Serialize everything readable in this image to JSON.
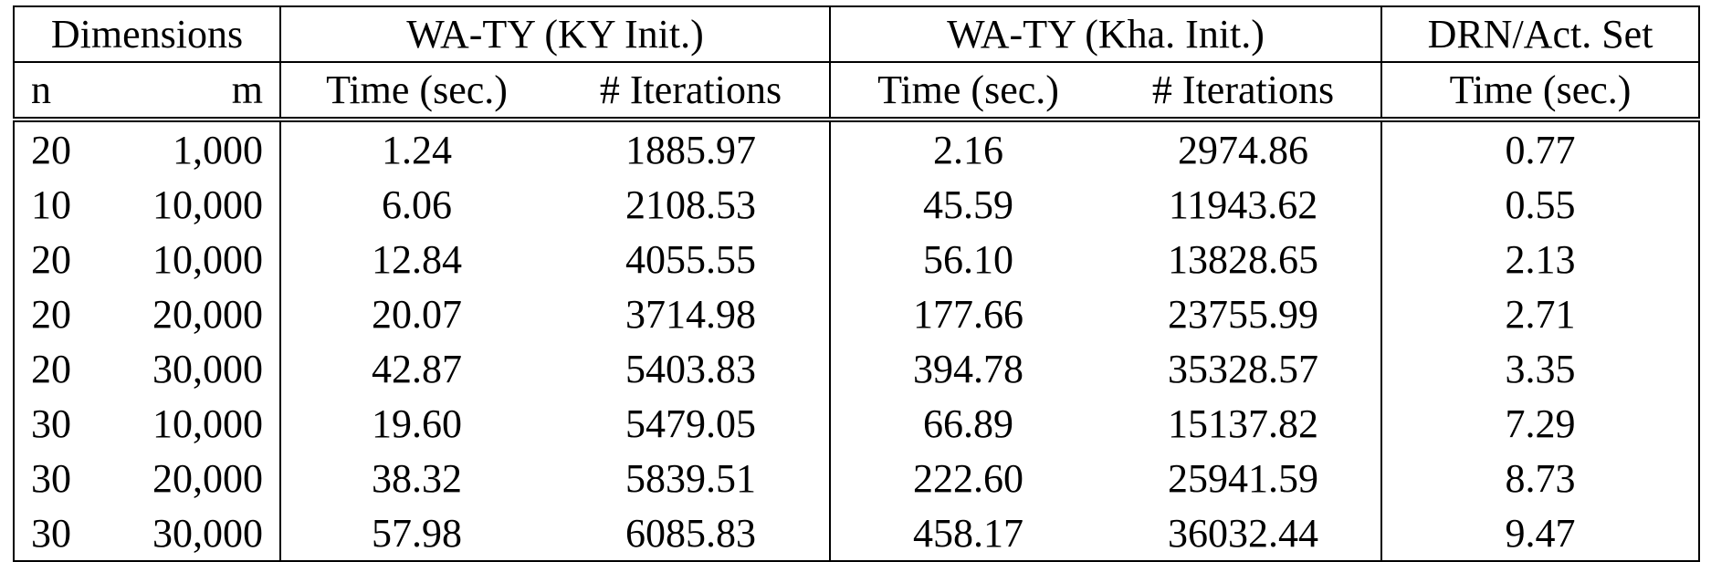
{
  "table": {
    "group_headers": [
      "Dimensions",
      "WA-TY (KY Init.)",
      "WA-TY (Kha. Init.)",
      "DRN/Act. Set"
    ],
    "column_headers": [
      "n",
      "m",
      "Time (sec.)",
      "# Iterations",
      "Time (sec.)",
      "# Iterations",
      "Time (sec.)"
    ],
    "rows": [
      [
        "20",
        "1,000",
        "1.24",
        "1885.97",
        "2.16",
        "2974.86",
        "0.77"
      ],
      [
        "10",
        "10,000",
        "6.06",
        "2108.53",
        "45.59",
        "11943.62",
        "0.55"
      ],
      [
        "20",
        "10,000",
        "12.84",
        "4055.55",
        "56.10",
        "13828.65",
        "2.13"
      ],
      [
        "20",
        "20,000",
        "20.07",
        "3714.98",
        "177.66",
        "23755.99",
        "2.71"
      ],
      [
        "20",
        "30,000",
        "42.87",
        "5403.83",
        "394.78",
        "35328.57",
        "3.35"
      ],
      [
        "30",
        "10,000",
        "19.60",
        "5479.05",
        "66.89",
        "15137.82",
        "7.29"
      ],
      [
        "30",
        "20,000",
        "38.32",
        "5839.51",
        "222.60",
        "25941.59",
        "8.73"
      ],
      [
        "30",
        "30,000",
        "57.98",
        "6085.83",
        "458.17",
        "36032.44",
        "9.47"
      ]
    ]
  }
}
